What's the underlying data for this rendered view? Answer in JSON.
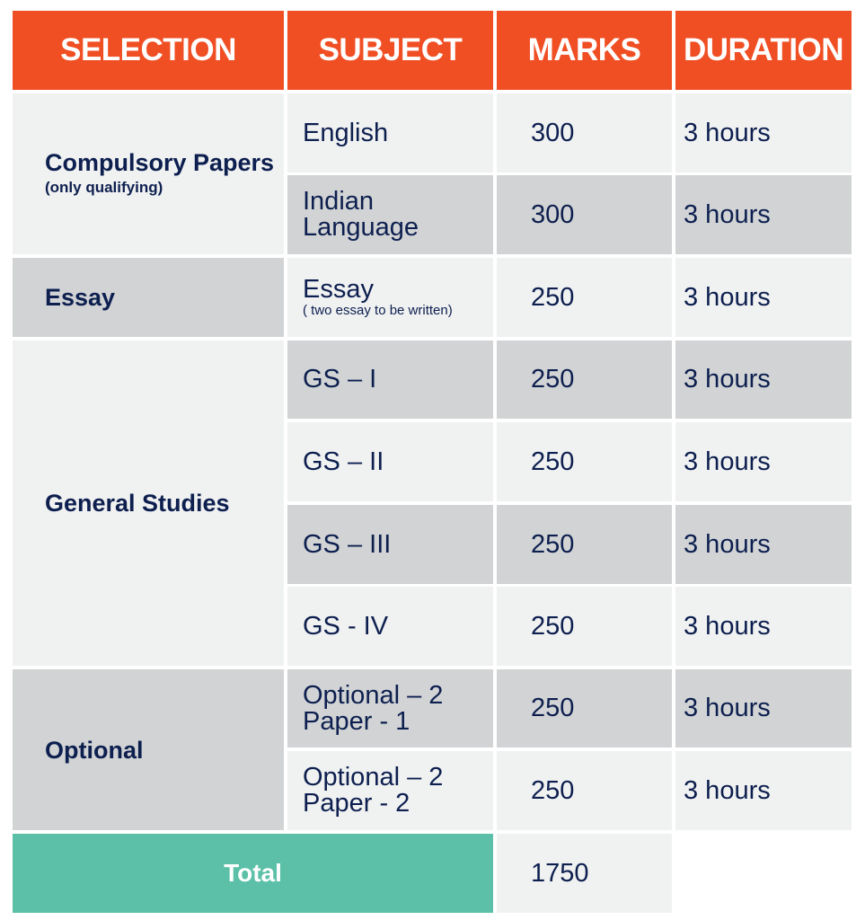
{
  "headers": {
    "selection": "SELECTION",
    "subject": "SUBJECT",
    "marks": "MARKS",
    "duration": "DURATION"
  },
  "groups": [
    {
      "label": "Compulsory Papers",
      "note": "(only qualifying)"
    },
    {
      "label": "Essay"
    },
    {
      "label": "General Studies"
    },
    {
      "label": "Optional"
    }
  ],
  "rows": [
    {
      "subject": "English",
      "marks": "300",
      "duration": "3 hours"
    },
    {
      "subject": "Indian Language",
      "marks": "300",
      "duration": "3 hours"
    },
    {
      "subject": "Essay",
      "note": "( two essay to be written)",
      "marks": "250",
      "duration": "3 hours"
    },
    {
      "subject": "GS – I",
      "marks": "250",
      "duration": "3 hours"
    },
    {
      "subject": "GS – II",
      "marks": "250",
      "duration": "3 hours"
    },
    {
      "subject": "GS – III",
      "marks": "250",
      "duration": "3 hours"
    },
    {
      "subject": "GS - IV",
      "marks": "250",
      "duration": "3 hours"
    },
    {
      "subject": "Optional – 2 Paper - 1",
      "marks": "250",
      "duration": "3 hours"
    },
    {
      "subject": "Optional – 2 Paper - 2",
      "marks": "250",
      "duration": "3 hours"
    }
  ],
  "total": {
    "label": "Total",
    "marks": "1750"
  },
  "colors": {
    "header": "#f04e23",
    "light": "#f0f1f1",
    "gray": "#d1d3d4",
    "total": "#5bc0a7",
    "text": "#0d1f4f"
  }
}
